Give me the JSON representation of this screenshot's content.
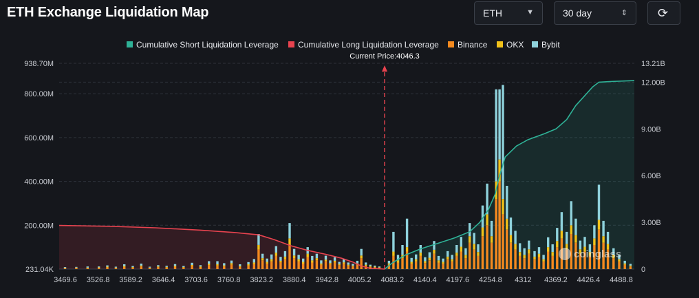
{
  "header": {
    "title": "ETH Exchange Liquidation Map",
    "symbol": "ETH",
    "period": "30 day"
  },
  "icons": {
    "dropdown": "chevron-down-icon",
    "period": "up-down-icon",
    "refresh": "refresh-icon"
  },
  "watermark": "coinglass",
  "chart_data": {
    "type": "bar",
    "stacked": true,
    "current_price_label": "Current Price:4046.3",
    "current_price": 4046.3,
    "x_range": [
      3469.6,
      4488.8
    ],
    "x_ticks": [
      "3469.6",
      "3526.8",
      "3589.2",
      "3646.4",
      "3703.6",
      "3760.8",
      "3823.2",
      "3880.4",
      "3942.8",
      "4005.2",
      "4083.2",
      "4140.4",
      "4197.6",
      "4254.8",
      "4312",
      "4369.2",
      "4426.4",
      "4488.8"
    ],
    "y_left_ticks": [
      "231.04K",
      "200.00M",
      "400.00M",
      "600.00M",
      "800.00M",
      "938.70M"
    ],
    "y_left_range": [
      0,
      938.7
    ],
    "y_left_unit": "M",
    "y_right_ticks": [
      "0",
      "3.00B",
      "6.00B",
      "9.00B",
      "12.00B",
      "13.21B"
    ],
    "y_right_range": [
      0,
      13.21
    ],
    "y_right_unit": "B",
    "grid": true,
    "legend_position": "top",
    "legend": [
      {
        "name": "Cumulative Short Liquidation Leverage",
        "color": "#2fb297"
      },
      {
        "name": "Cumulative Long Liquidation Leverage",
        "color": "#e8434f"
      },
      {
        "name": "Binance",
        "color": "#f58a1f"
      },
      {
        "name": "OKX",
        "color": "#f2c21a"
      },
      {
        "name": "Bybit",
        "color": "#8fd2dc"
      }
    ],
    "cumulative_long": {
      "name": "Cumulative Long Liquidation Leverage",
      "points": [
        [
          3469.6,
          2.8
        ],
        [
          3560,
          2.75
        ],
        [
          3640,
          2.65
        ],
        [
          3720,
          2.5
        ],
        [
          3780,
          2.35
        ],
        [
          3823,
          2.2
        ],
        [
          3850,
          1.9
        ],
        [
          3880,
          1.5
        ],
        [
          3910,
          1.2
        ],
        [
          3942,
          0.95
        ],
        [
          3970,
          0.7
        ],
        [
          3990,
          0.45
        ],
        [
          4005,
          0.2
        ],
        [
          4020,
          0.06
        ],
        [
          4046.3,
          0
        ]
      ]
    },
    "cumulative_short": {
      "name": "Cumulative Short Liquidation Leverage",
      "points": [
        [
          4046.3,
          0
        ],
        [
          4060,
          0.4
        ],
        [
          4083,
          0.9
        ],
        [
          4110,
          1.3
        ],
        [
          4140,
          1.65
        ],
        [
          4170,
          2.0
        ],
        [
          4197,
          2.4
        ],
        [
          4215,
          3.0
        ],
        [
          4230,
          3.8
        ],
        [
          4242,
          4.8
        ],
        [
          4250,
          6.0
        ],
        [
          4260,
          7.2
        ],
        [
          4280,
          7.9
        ],
        [
          4300,
          8.3
        ],
        [
          4330,
          8.7
        ],
        [
          4350,
          9.0
        ],
        [
          4369,
          9.6
        ],
        [
          4385,
          10.5
        ],
        [
          4400,
          11.1
        ],
        [
          4415,
          11.7
        ],
        [
          4426,
          12.0
        ],
        [
          4450,
          12.05
        ],
        [
          4488.8,
          12.1
        ]
      ]
    },
    "bars": [
      {
        "x": 3480,
        "binance": 3,
        "okx": 2,
        "bybit": 4
      },
      {
        "x": 3500,
        "binance": 5,
        "okx": 2,
        "bybit": 3
      },
      {
        "x": 3520,
        "binance": 4,
        "okx": 3,
        "bybit": 5
      },
      {
        "x": 3540,
        "binance": 6,
        "okx": 2,
        "bybit": 4
      },
      {
        "x": 3555,
        "binance": 8,
        "okx": 3,
        "bybit": 6
      },
      {
        "x": 3570,
        "binance": 5,
        "okx": 2,
        "bybit": 4
      },
      {
        "x": 3585,
        "binance": 10,
        "okx": 4,
        "bybit": 8
      },
      {
        "x": 3600,
        "binance": 6,
        "okx": 3,
        "bybit": 5
      },
      {
        "x": 3615,
        "binance": 12,
        "okx": 4,
        "bybit": 9
      },
      {
        "x": 3630,
        "binance": 5,
        "okx": 2,
        "bybit": 4
      },
      {
        "x": 3645,
        "binance": 9,
        "okx": 3,
        "bybit": 6
      },
      {
        "x": 3660,
        "binance": 7,
        "okx": 3,
        "bybit": 5
      },
      {
        "x": 3675,
        "binance": 11,
        "okx": 4,
        "bybit": 8
      },
      {
        "x": 3690,
        "binance": 6,
        "okx": 3,
        "bybit": 5
      },
      {
        "x": 3705,
        "binance": 14,
        "okx": 5,
        "bybit": 10
      },
      {
        "x": 3720,
        "binance": 8,
        "okx": 4,
        "bybit": 6
      },
      {
        "x": 3735,
        "binance": 18,
        "okx": 6,
        "bybit": 12
      },
      {
        "x": 3750,
        "binance": 16,
        "okx": 6,
        "bybit": 14
      },
      {
        "x": 3762,
        "binance": 12,
        "okx": 5,
        "bybit": 10
      },
      {
        "x": 3775,
        "binance": 20,
        "okx": 7,
        "bybit": 12
      },
      {
        "x": 3790,
        "binance": 10,
        "okx": 4,
        "bybit": 8
      },
      {
        "x": 3805,
        "binance": 16,
        "okx": 6,
        "bybit": 10
      },
      {
        "x": 3815,
        "binance": 22,
        "okx": 8,
        "bybit": 16
      },
      {
        "x": 3823,
        "binance": 90,
        "okx": 20,
        "bybit": 50
      },
      {
        "x": 3830,
        "binance": 40,
        "okx": 10,
        "bybit": 20
      },
      {
        "x": 3838,
        "binance": 25,
        "okx": 8,
        "bybit": 15
      },
      {
        "x": 3846,
        "binance": 35,
        "okx": 10,
        "bybit": 22
      },
      {
        "x": 3854,
        "binance": 60,
        "okx": 15,
        "bybit": 30
      },
      {
        "x": 3862,
        "binance": 30,
        "okx": 8,
        "bybit": 18
      },
      {
        "x": 3870,
        "binance": 45,
        "okx": 12,
        "bybit": 25
      },
      {
        "x": 3878,
        "binance": 110,
        "okx": 30,
        "bybit": 70
      },
      {
        "x": 3886,
        "binance": 50,
        "okx": 12,
        "bybit": 30
      },
      {
        "x": 3894,
        "binance": 35,
        "okx": 10,
        "bybit": 20
      },
      {
        "x": 3902,
        "binance": 25,
        "okx": 8,
        "bybit": 15
      },
      {
        "x": 3910,
        "binance": 55,
        "okx": 15,
        "bybit": 30
      },
      {
        "x": 3918,
        "binance": 30,
        "okx": 10,
        "bybit": 20
      },
      {
        "x": 3926,
        "binance": 40,
        "okx": 10,
        "bybit": 20
      },
      {
        "x": 3934,
        "binance": 20,
        "okx": 6,
        "bybit": 14
      },
      {
        "x": 3942,
        "binance": 35,
        "okx": 8,
        "bybit": 18
      },
      {
        "x": 3950,
        "binance": 22,
        "okx": 6,
        "bybit": 12
      },
      {
        "x": 3958,
        "binance": 30,
        "okx": 8,
        "bybit": 16
      },
      {
        "x": 3966,
        "binance": 18,
        "okx": 5,
        "bybit": 10
      },
      {
        "x": 3974,
        "binance": 25,
        "okx": 6,
        "bybit": 14
      },
      {
        "x": 3982,
        "binance": 15,
        "okx": 5,
        "bybit": 10
      },
      {
        "x": 3990,
        "binance": 12,
        "okx": 4,
        "bybit": 8
      },
      {
        "x": 3998,
        "binance": 20,
        "okx": 6,
        "bybit": 12
      },
      {
        "x": 4005,
        "binance": 50,
        "okx": 12,
        "bybit": 30
      },
      {
        "x": 4013,
        "binance": 15,
        "okx": 5,
        "bybit": 10
      },
      {
        "x": 4021,
        "binance": 10,
        "okx": 4,
        "bybit": 6
      },
      {
        "x": 4029,
        "binance": 8,
        "okx": 3,
        "bybit": 5
      },
      {
        "x": 4037,
        "binance": 6,
        "okx": 2,
        "bybit": 4
      },
      {
        "x": 4054,
        "binance": 20,
        "okx": 6,
        "bybit": 12
      },
      {
        "x": 4062,
        "binance": 60,
        "okx": 20,
        "bybit": 90
      },
      {
        "x": 4070,
        "binance": 30,
        "okx": 10,
        "bybit": 25
      },
      {
        "x": 4078,
        "binance": 50,
        "okx": 15,
        "bybit": 45
      },
      {
        "x": 4086,
        "binance": 80,
        "okx": 20,
        "bybit": 130
      },
      {
        "x": 4094,
        "binance": 25,
        "okx": 8,
        "bybit": 18
      },
      {
        "x": 4102,
        "binance": 35,
        "okx": 10,
        "bybit": 22
      },
      {
        "x": 4110,
        "binance": 60,
        "okx": 15,
        "bybit": 35
      },
      {
        "x": 4118,
        "binance": 28,
        "okx": 8,
        "bybit": 18
      },
      {
        "x": 4126,
        "binance": 40,
        "okx": 12,
        "bybit": 25
      },
      {
        "x": 4134,
        "binance": 70,
        "okx": 18,
        "bybit": 40
      },
      {
        "x": 4142,
        "binance": 30,
        "okx": 10,
        "bybit": 20
      },
      {
        "x": 4150,
        "binance": 25,
        "okx": 8,
        "bybit": 15
      },
      {
        "x": 4158,
        "binance": 45,
        "okx": 12,
        "bybit": 25
      },
      {
        "x": 4166,
        "binance": 35,
        "okx": 10,
        "bybit": 20
      },
      {
        "x": 4174,
        "binance": 60,
        "okx": 15,
        "bybit": 35
      },
      {
        "x": 4182,
        "binance": 80,
        "okx": 22,
        "bybit": 45
      },
      {
        "x": 4190,
        "binance": 50,
        "okx": 15,
        "bybit": 30
      },
      {
        "x": 4197,
        "binance": 120,
        "okx": 30,
        "bybit": 60
      },
      {
        "x": 4205,
        "binance": 90,
        "okx": 25,
        "bybit": 50
      },
      {
        "x": 4212,
        "binance": 60,
        "okx": 18,
        "bybit": 35
      },
      {
        "x": 4220,
        "binance": 150,
        "okx": 40,
        "bybit": 100
      },
      {
        "x": 4228,
        "binance": 200,
        "okx": 50,
        "bybit": 140
      },
      {
        "x": 4236,
        "binance": 120,
        "okx": 30,
        "bybit": 70
      },
      {
        "x": 4244,
        "binance": 320,
        "okx": 80,
        "bybit": 420
      },
      {
        "x": 4250,
        "binance": 400,
        "okx": 100,
        "bybit": 320
      },
      {
        "x": 4256,
        "binance": 250,
        "okx": 70,
        "bybit": 520
      },
      {
        "x": 4263,
        "binance": 180,
        "okx": 50,
        "bybit": 150
      },
      {
        "x": 4270,
        "binance": 120,
        "okx": 35,
        "bybit": 80
      },
      {
        "x": 4278,
        "binance": 90,
        "okx": 25,
        "bybit": 60
      },
      {
        "x": 4286,
        "binance": 60,
        "okx": 18,
        "bybit": 40
      },
      {
        "x": 4294,
        "binance": 50,
        "okx": 15,
        "bybit": 30
      },
      {
        "x": 4302,
        "binance": 70,
        "okx": 20,
        "bybit": 40
      },
      {
        "x": 4312,
        "binance": 45,
        "okx": 12,
        "bybit": 25
      },
      {
        "x": 4320,
        "binance": 55,
        "okx": 15,
        "bybit": 30
      },
      {
        "x": 4328,
        "binance": 35,
        "okx": 10,
        "bybit": 20
      },
      {
        "x": 4336,
        "binance": 80,
        "okx": 20,
        "bybit": 45
      },
      {
        "x": 4344,
        "binance": 60,
        "okx": 18,
        "bybit": 35
      },
      {
        "x": 4352,
        "binance": 100,
        "okx": 28,
        "bybit": 60
      },
      {
        "x": 4360,
        "binance": 140,
        "okx": 35,
        "bybit": 85
      },
      {
        "x": 4369,
        "binance": 90,
        "okx": 25,
        "bybit": 55
      },
      {
        "x": 4377,
        "binance": 160,
        "okx": 40,
        "bybit": 110
      },
      {
        "x": 4385,
        "binance": 120,
        "okx": 35,
        "bybit": 75
      },
      {
        "x": 4393,
        "binance": 70,
        "okx": 20,
        "bybit": 40
      },
      {
        "x": 4401,
        "binance": 80,
        "okx": 22,
        "bybit": 45
      },
      {
        "x": 4410,
        "binance": 60,
        "okx": 18,
        "bybit": 35
      },
      {
        "x": 4418,
        "binance": 110,
        "okx": 30,
        "bybit": 60
      },
      {
        "x": 4426,
        "binance": 180,
        "okx": 45,
        "bybit": 160
      },
      {
        "x": 4434,
        "binance": 120,
        "okx": 30,
        "bybit": 70
      },
      {
        "x": 4442,
        "binance": 90,
        "okx": 25,
        "bybit": 55
      },
      {
        "x": 4452,
        "binance": 50,
        "okx": 15,
        "bybit": 30
      },
      {
        "x": 4462,
        "binance": 35,
        "okx": 10,
        "bybit": 20
      },
      {
        "x": 4472,
        "binance": 20,
        "okx": 6,
        "bybit": 12
      },
      {
        "x": 4482,
        "binance": 12,
        "okx": 4,
        "bybit": 8
      }
    ]
  }
}
